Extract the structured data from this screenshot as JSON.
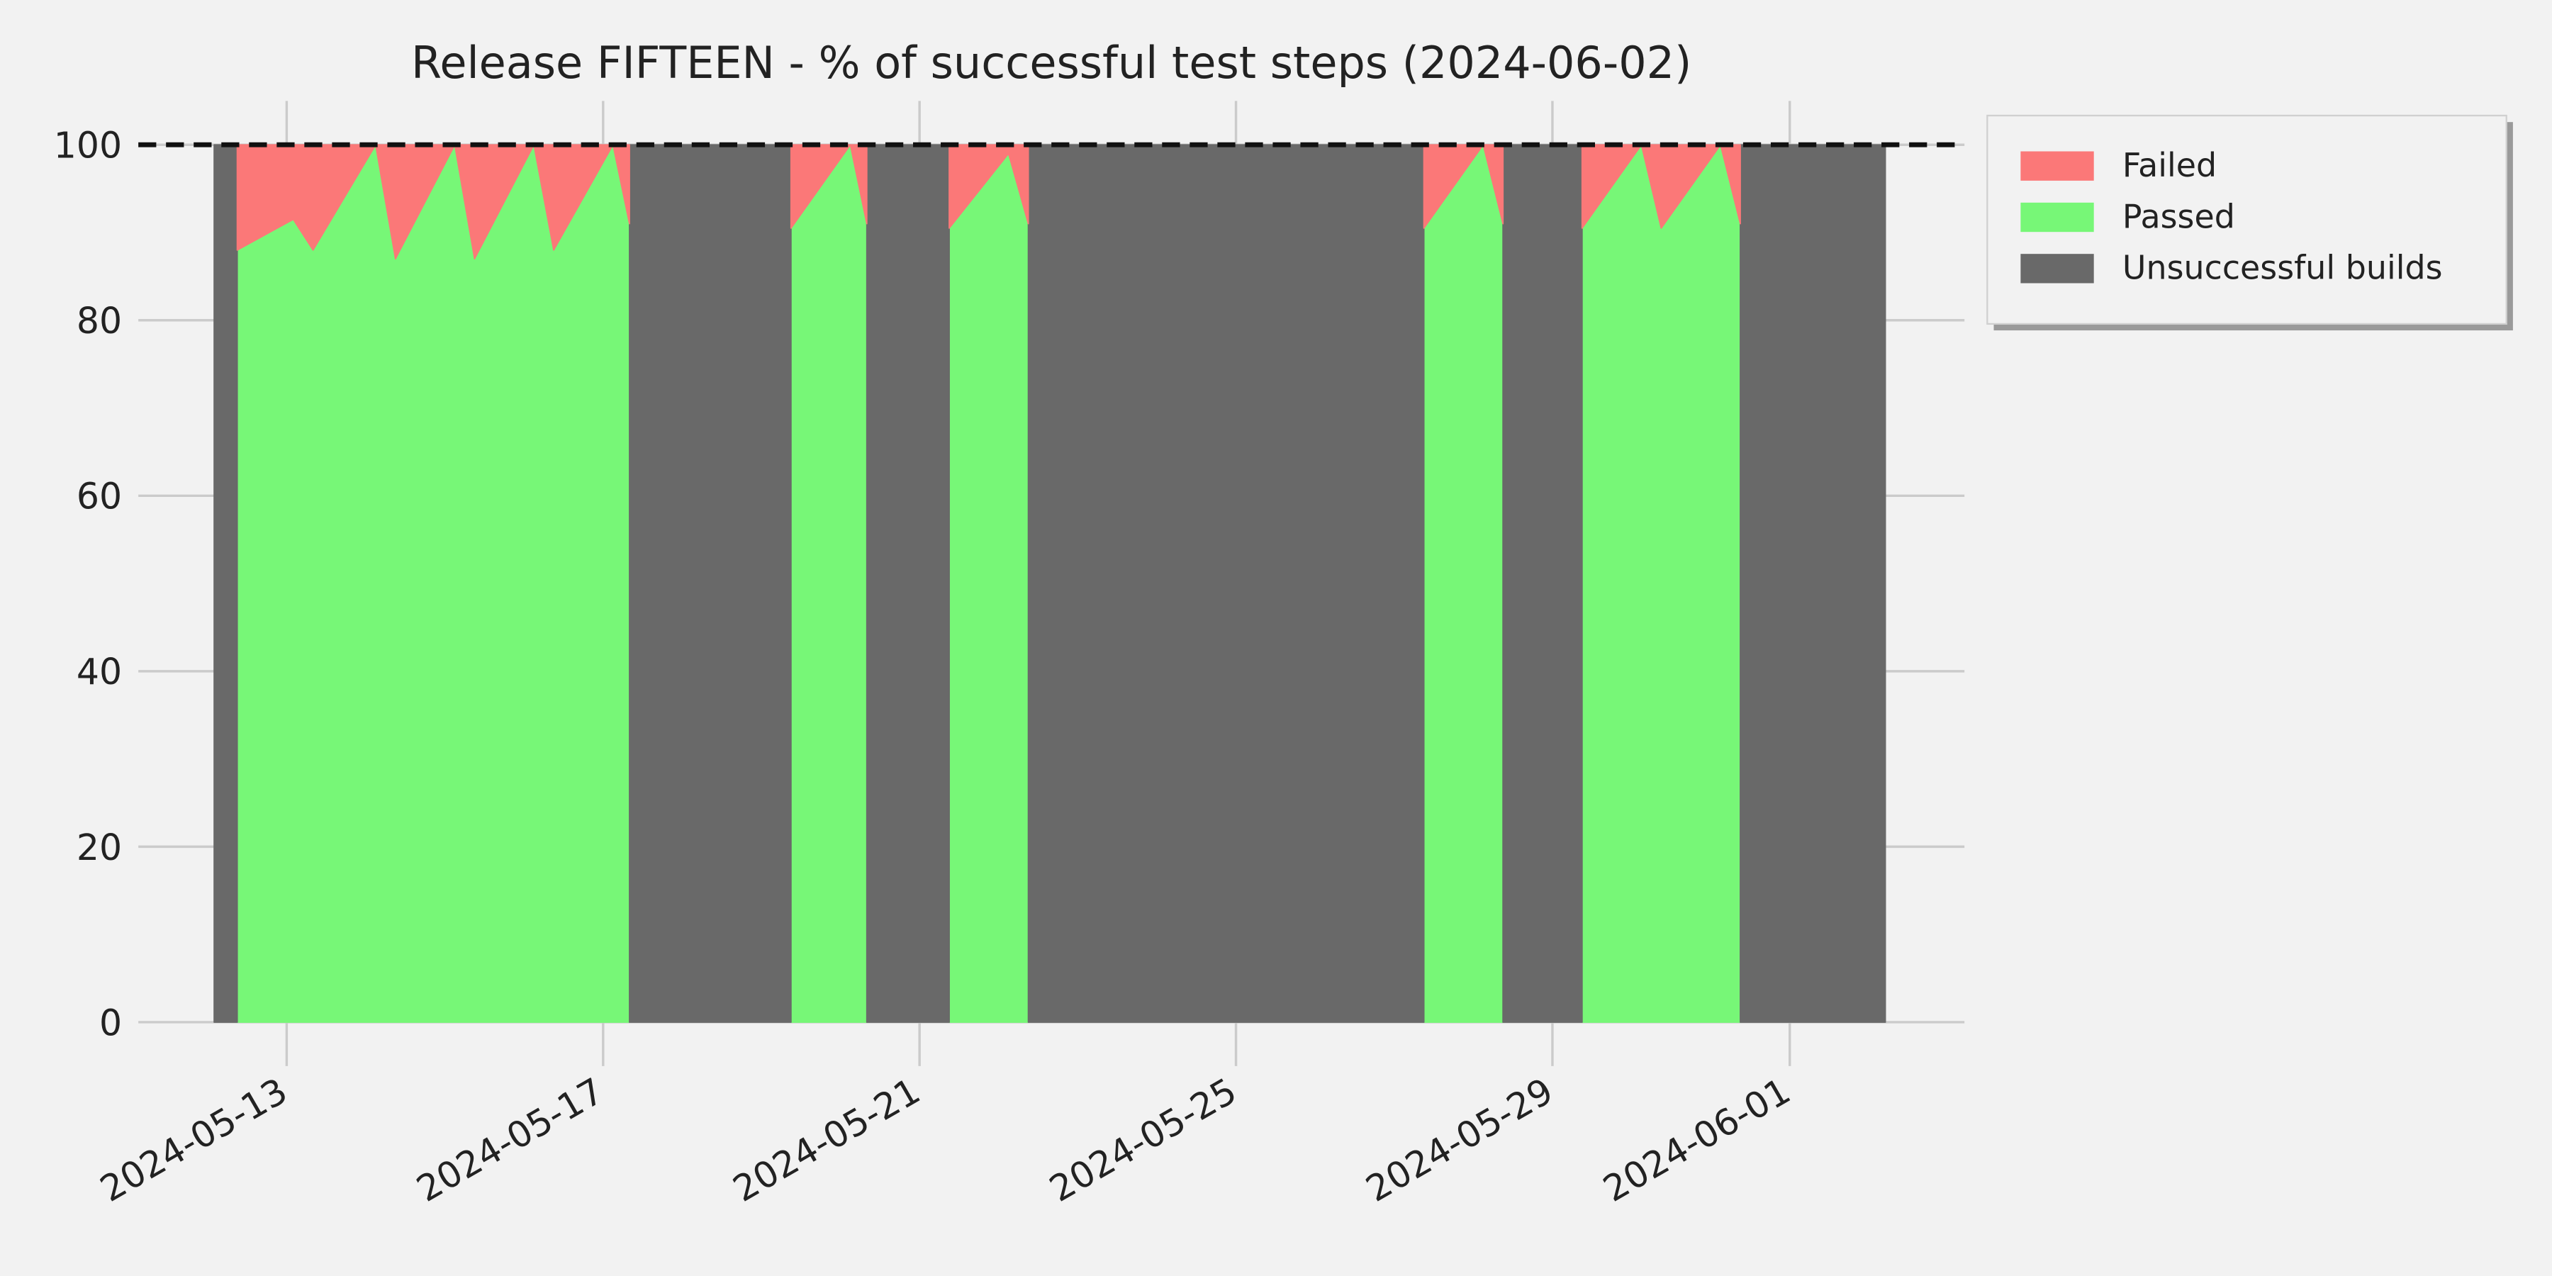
{
  "chart_data": {
    "type": "stacked_area",
    "title": "Release FIFTEEN - % of successful test steps (2024-06-02)",
    "x": [
      "2024-05-12T02:00",
      "2024-05-12T09:00",
      "2024-05-12T09:00",
      "2024-05-13T02:00",
      "2024-05-13T08:00",
      "2024-05-14T03:00",
      "2024-05-14T09:00",
      "2024-05-15T03:00",
      "2024-05-15T09:00",
      "2024-05-16T03:00",
      "2024-05-16T09:00",
      "2024-05-17T03:00",
      "2024-05-17T08:00",
      "2024-05-17T08:00",
      "2024-05-19T09:00",
      "2024-05-19T09:00",
      "2024-05-20T03:00",
      "2024-05-20T08:00",
      "2024-05-20T08:00",
      "2024-05-21T09:00",
      "2024-05-21T09:00",
      "2024-05-22T03:00",
      "2024-05-22T09:00",
      "2024-05-22T09:00",
      "2024-05-27T09:00",
      "2024-05-27T09:00",
      "2024-05-28T03:00",
      "2024-05-28T09:00",
      "2024-05-28T09:00",
      "2024-05-29T09:00",
      "2024-05-29T09:00",
      "2024-05-30T03:00",
      "2024-05-30T09:00",
      "2024-05-31T03:00",
      "2024-05-31T09:00",
      "2024-05-31T09:00",
      "2024-06-02T05:00"
    ],
    "series": [
      {
        "name": "Failed",
        "color": "#fb7878",
        "stacked_on": "Passed",
        "values": [
          null,
          null,
          12,
          8.5,
          12,
          0,
          13,
          0,
          13,
          0,
          12,
          0,
          9,
          null,
          null,
          9.5,
          0,
          9,
          null,
          null,
          9.5,
          1,
          9,
          null,
          null,
          9.5,
          0,
          9,
          null,
          null,
          9.5,
          0,
          9.5,
          0,
          9,
          null,
          null
        ]
      },
      {
        "name": "Passed",
        "color": "#77f777",
        "values": [
          null,
          null,
          88,
          91.5,
          88,
          100,
          87,
          100,
          87,
          100,
          88,
          100,
          91,
          null,
          null,
          90.5,
          100,
          91,
          null,
          null,
          90.5,
          99,
          91,
          null,
          null,
          90.5,
          100,
          91,
          null,
          null,
          90.5,
          100,
          90.5,
          100,
          91,
          null,
          null
        ]
      },
      {
        "name": "Unsuccessful builds",
        "color": "#696969",
        "values": [
          100,
          100,
          null,
          null,
          null,
          null,
          null,
          null,
          null,
          null,
          null,
          null,
          null,
          100,
          100,
          null,
          null,
          null,
          100,
          100,
          null,
          null,
          null,
          100,
          100,
          null,
          null,
          null,
          100,
          100,
          null,
          null,
          null,
          null,
          null,
          100,
          100
        ]
      }
    ],
    "xlim": [
      "2024-05-11T03:00",
      "2024-06-03T05:00"
    ],
    "xticks": [
      "2024-05-13",
      "2024-05-17",
      "2024-05-21",
      "2024-05-25",
      "2024-05-29",
      "2024-06-01"
    ],
    "ylim": [
      -5,
      105
    ],
    "yticks": [
      0,
      20,
      40,
      60,
      80,
      100
    ],
    "reference_line": 100,
    "grid": true,
    "legend": "outside upper right"
  }
}
